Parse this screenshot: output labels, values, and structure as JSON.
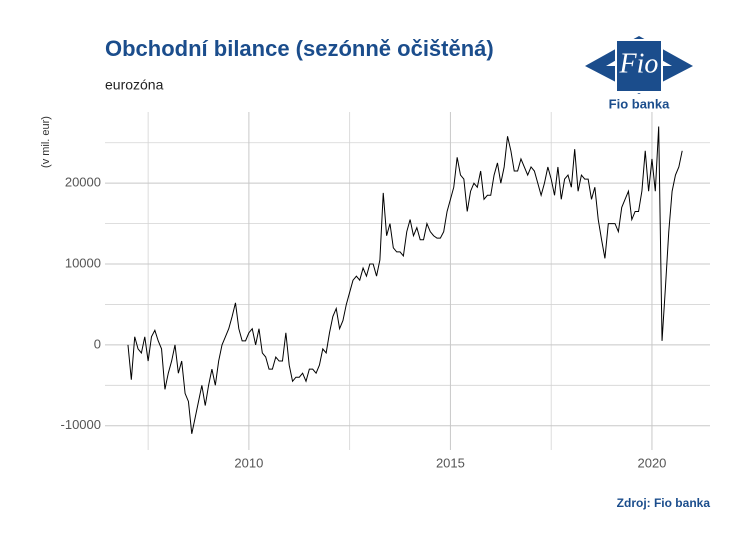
{
  "chart_data": {
    "type": "line",
    "title": "Obchodní bilance (sezónně očištěná)",
    "subtitle": "eurozóna",
    "y_label": "(v mil. eur)",
    "source": "Zdroj: Fio banka",
    "logo": {
      "mark": "Fio",
      "name": "Fio banka"
    },
    "color": "#000000",
    "grid": true,
    "xlim": [
      2006.43,
      2021.44
    ],
    "ylim": [
      -13000,
      28800
    ],
    "xticks": [
      2010,
      2015,
      2020
    ],
    "xminorticks": [
      2007.5,
      2012.5,
      2017.5
    ],
    "yticks": [
      -10000,
      0,
      10000,
      20000
    ],
    "yminorticks": [
      -5000,
      5000,
      15000,
      25000
    ],
    "x": [
      2007,
      2007.083,
      2007.167,
      2007.25,
      2007.333,
      2007.417,
      2007.5,
      2007.583,
      2007.667,
      2007.75,
      2007.833,
      2007.917,
      2008,
      2008.083,
      2008.167,
      2008.25,
      2008.333,
      2008.417,
      2008.5,
      2008.583,
      2008.667,
      2008.75,
      2008.833,
      2008.917,
      2009,
      2009.083,
      2009.167,
      2009.25,
      2009.333,
      2009.417,
      2009.5,
      2009.583,
      2009.667,
      2009.75,
      2009.833,
      2009.917,
      2010,
      2010.083,
      2010.167,
      2010.25,
      2010.333,
      2010.417,
      2010.5,
      2010.583,
      2010.667,
      2010.75,
      2010.833,
      2010.917,
      2011,
      2011.083,
      2011.167,
      2011.25,
      2011.333,
      2011.417,
      2011.5,
      2011.583,
      2011.667,
      2011.75,
      2011.833,
      2011.917,
      2012,
      2012.083,
      2012.167,
      2012.25,
      2012.333,
      2012.417,
      2012.5,
      2012.583,
      2012.667,
      2012.75,
      2012.833,
      2012.917,
      2013,
      2013.083,
      2013.167,
      2013.25,
      2013.333,
      2013.417,
      2013.5,
      2013.583,
      2013.667,
      2013.75,
      2013.833,
      2013.917,
      2014,
      2014.083,
      2014.167,
      2014.25,
      2014.333,
      2014.417,
      2014.5,
      2014.583,
      2014.667,
      2014.75,
      2014.833,
      2014.917,
      2015,
      2015.083,
      2015.167,
      2015.25,
      2015.333,
      2015.417,
      2015.5,
      2015.583,
      2015.667,
      2015.75,
      2015.833,
      2015.917,
      2016,
      2016.083,
      2016.167,
      2016.25,
      2016.333,
      2016.417,
      2016.5,
      2016.583,
      2016.667,
      2016.75,
      2016.833,
      2016.917,
      2017,
      2017.083,
      2017.167,
      2017.25,
      2017.333,
      2017.417,
      2017.5,
      2017.583,
      2017.667,
      2017.75,
      2017.833,
      2017.917,
      2018,
      2018.083,
      2018.167,
      2018.25,
      2018.333,
      2018.417,
      2018.5,
      2018.583,
      2018.667,
      2018.75,
      2018.833,
      2018.917,
      2019,
      2019.083,
      2019.167,
      2019.25,
      2019.333,
      2019.417,
      2019.5,
      2019.583,
      2019.667,
      2019.75,
      2019.833,
      2019.917,
      2020,
      2020.083,
      2020.167,
      2020.25,
      2020.333,
      2020.417,
      2020.5,
      2020.583,
      2020.667,
      2020.75
    ],
    "values": [
      0,
      -4300,
      1000,
      -500,
      -1000,
      1000,
      -2000,
      1000,
      1800,
      500,
      -500,
      -5500,
      -3500,
      -2000,
      0,
      -3500,
      -2000,
      -6000,
      -7000,
      -11000,
      -9000,
      -7000,
      -5000,
      -7500,
      -5000,
      -3000,
      -5000,
      -2000,
      0,
      1000,
      2000,
      3500,
      5200,
      2000,
      500,
      500,
      1500,
      2000,
      0,
      2000,
      -1000,
      -1500,
      -3000,
      -3000,
      -1500,
      -2000,
      -2000,
      1500,
      -2500,
      -4500,
      -4000,
      -4000,
      -3500,
      -4500,
      -3000,
      -3000,
      -3500,
      -2500,
      -500,
      -1000,
      1500,
      3500,
      4500,
      2000,
      3000,
      5000,
      6500,
      8000,
      8500,
      8000,
      9500,
      8500,
      10000,
      10000,
      8500,
      10500,
      18800,
      13500,
      15000,
      12000,
      11500,
      11500,
      11000,
      14000,
      15500,
      13500,
      14500,
      13000,
      13000,
      15000,
      14000,
      13500,
      13200,
      13200,
      14000,
      16500,
      18000,
      19500,
      23200,
      21000,
      20500,
      16500,
      19000,
      20000,
      19500,
      21500,
      18000,
      18500,
      18500,
      21000,
      22500,
      20000,
      22000,
      25800,
      24000,
      21500,
      21500,
      23000,
      22000,
      21000,
      22000,
      21500,
      20000,
      18500,
      20000,
      22000,
      20500,
      18500,
      22000,
      18000,
      20500,
      21000,
      19500,
      24200,
      19000,
      21000,
      20500,
      20500,
      18000,
      19500,
      15500,
      13000,
      10700,
      15000,
      15000,
      15000,
      14000,
      17000,
      18000,
      19000,
      15500,
      16500,
      16500,
      19000,
      24000,
      19000,
      23000,
      19000,
      27000,
      500,
      7000,
      14000,
      19000,
      21000,
      22000,
      24000
    ]
  }
}
